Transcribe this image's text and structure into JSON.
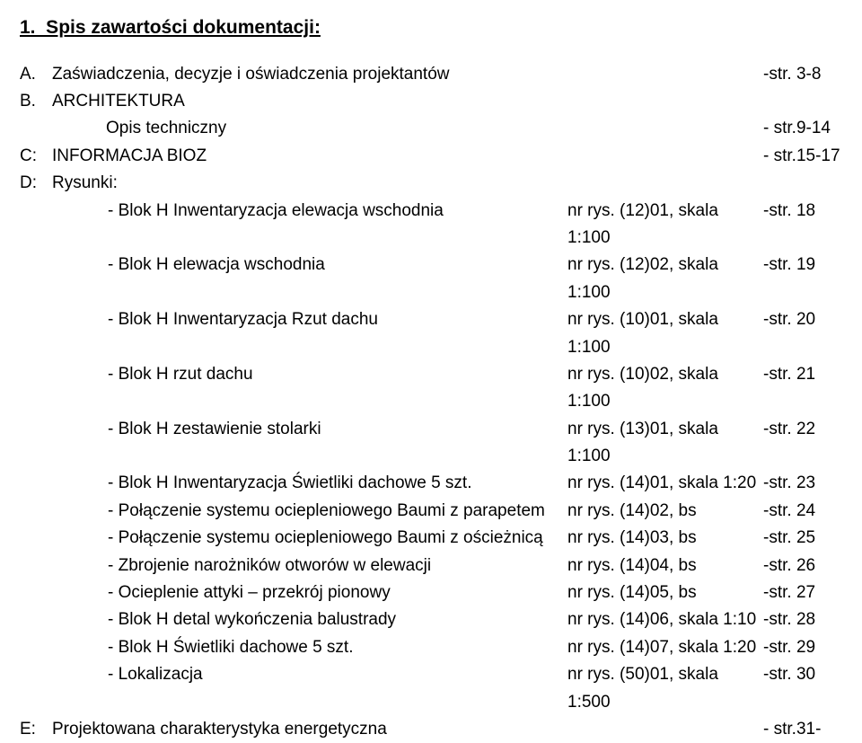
{
  "title": "1.  Spis zawartości dokumentacji:",
  "sections": [
    {
      "letter": "A.",
      "text": "Zaświadczenia, decyzje i oświadczenia projektantów",
      "page": "-str. 3-8"
    },
    {
      "letter": "B.",
      "text": "ARCHITEKTURA",
      "page": ""
    }
  ],
  "opis": {
    "label": "Opis techniczny",
    "page": "- str.9-14"
  },
  "sectionC": {
    "letter": "C:",
    "text": "INFORMACJA BIOZ",
    "page": "- str.15-17"
  },
  "sectionD": {
    "letter": "D:",
    "text": "Rysunki:"
  },
  "rows": [
    {
      "label": "- Blok H Inwentaryzacja elewacja wschodnia",
      "mid": "nr rys. (12)01, skala 1:100",
      "page": "-str. 18"
    },
    {
      "label": "- Blok H elewacja wschodnia",
      "mid": "nr rys. (12)02, skala 1:100",
      "page": "-str. 19"
    },
    {
      "label": "- Blok H Inwentaryzacja Rzut dachu",
      "mid": "nr rys. (10)01, skala 1:100",
      "page": "-str. 20"
    },
    {
      "label": "- Blok H rzut dachu",
      "mid": "nr rys. (10)02, skala 1:100",
      "page": "-str. 21"
    },
    {
      "label": "- Blok H zestawienie stolarki",
      "mid": "nr rys. (13)01, skala 1:100",
      "page": "-str. 22"
    },
    {
      "label": "- Blok H Inwentaryzacja Świetliki dachowe 5 szt.",
      "mid": "nr rys. (14)01, skala 1:20",
      "page": "-str. 23"
    },
    {
      "label": "- Połączenie systemu ociepleniowego Baumi z parapetem",
      "mid": "nr rys. (14)02, bs",
      "page": "-str. 24"
    },
    {
      "label": "- Połączenie systemu ociepleniowego Baumi z ościeżnicą",
      "mid": "nr rys. (14)03, bs",
      "page": "-str. 25"
    },
    {
      "label": "- Zbrojenie narożników otworów w elewacji",
      "mid": "nr rys. (14)04, bs",
      "page": "-str. 26"
    },
    {
      "label": "- Ocieplenie attyki – przekrój pionowy",
      "mid": "nr rys. (14)05, bs",
      "page": "-str. 27"
    },
    {
      "label": "- Blok H detal wykończenia balustrady",
      "mid": "nr rys. (14)06, skala 1:10",
      "page": "-str. 28"
    },
    {
      "label": "- Blok H  Świetliki dachowe 5 szt.",
      "mid": "nr rys. (14)07, skala 1:20",
      "page": "-str. 29"
    },
    {
      "label": "- Lokalizacja",
      "mid": "nr rys. (50)01, skala 1:500",
      "page": "-str. 30"
    }
  ],
  "sectionE": {
    "letter": "E:",
    "text": "Projektowana charakterystyka energetyczna",
    "page": "- str.31-"
  }
}
